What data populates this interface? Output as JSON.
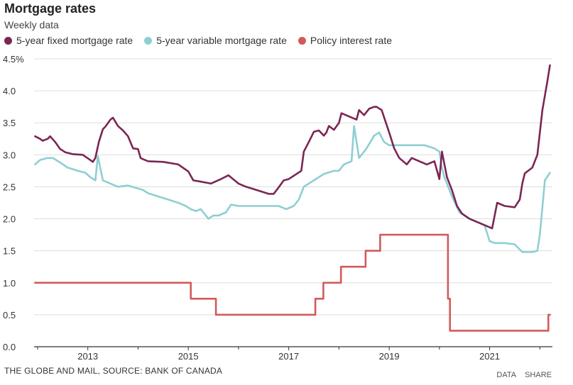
{
  "header": {
    "title": "Mortgage rates",
    "subtitle": "Weekly data"
  },
  "footer": {
    "source": "THE GLOBE AND MAIL, SOURCE: BANK OF CANADA",
    "data_link": "DATA",
    "share_link": "SHARE"
  },
  "colors": {
    "fixed": "#7b2653",
    "variable": "#8ecfd3",
    "policy": "#d35a5a",
    "grid": "#dddddd",
    "axis": "#333333"
  },
  "chart_data": {
    "type": "line",
    "title": "Mortgage rates",
    "subtitle": "Weekly data",
    "legend_position": "top-left",
    "grid": true,
    "xlim": [
      2011.93,
      2022.25
    ],
    "ylim": [
      0,
      4.5
    ],
    "yticks": [
      0.0,
      0.5,
      1.0,
      1.5,
      2.0,
      2.5,
      3.0,
      3.5,
      4.0,
      4.5
    ],
    "ytick_labels": [
      "0.0",
      "0.5",
      "1.0",
      "1.5",
      "2.0",
      "2.5",
      "3.0",
      "3.5",
      "4.0",
      "4.5%"
    ],
    "xticks": [
      2013,
      2015,
      2017,
      2019,
      2021
    ],
    "xtick_labels": [
      "2013",
      "2015",
      "2017",
      "2019",
      "2021"
    ],
    "series": [
      {
        "name": "5-year fixed mortgage rate",
        "color": "#7b2653",
        "x": [
          2011.95,
          2012.05,
          2012.1,
          2012.2,
          2012.25,
          2012.35,
          2012.45,
          2012.55,
          2012.7,
          2012.9,
          2013.1,
          2013.15,
          2013.22,
          2013.3,
          2013.35,
          2013.45,
          2013.5,
          2013.6,
          2013.7,
          2013.8,
          2013.9,
          2014.0,
          2014.05,
          2014.1,
          2014.2,
          2014.5,
          2014.8,
          2015.0,
          2015.1,
          2015.25,
          2015.45,
          2015.65,
          2015.8,
          2016.0,
          2016.15,
          2016.4,
          2016.6,
          2016.7,
          2016.8,
          2016.9,
          2017.0,
          2017.25,
          2017.3,
          2017.4,
          2017.5,
          2017.6,
          2017.7,
          2017.75,
          2017.8,
          2017.9,
          2018.0,
          2018.05,
          2018.2,
          2018.35,
          2018.4,
          2018.5,
          2018.6,
          2018.7,
          2018.75,
          2018.85,
          2019.0,
          2019.1,
          2019.2,
          2019.35,
          2019.45,
          2019.6,
          2019.75,
          2019.9,
          2020.0,
          2020.05,
          2020.15,
          2020.25,
          2020.35,
          2020.45,
          2020.6,
          2020.75,
          2020.9,
          2021.05,
          2021.15,
          2021.3,
          2021.5,
          2021.6,
          2021.65,
          2021.7,
          2021.85,
          2021.95,
          2022.05,
          2022.15,
          2022.2
        ],
        "values": [
          3.29,
          3.25,
          3.22,
          3.25,
          3.29,
          3.2,
          3.09,
          3.04,
          3.01,
          3.0,
          2.89,
          2.95,
          3.2,
          3.4,
          3.44,
          3.55,
          3.58,
          3.45,
          3.38,
          3.29,
          3.1,
          3.09,
          2.95,
          2.93,
          2.9,
          2.89,
          2.85,
          2.74,
          2.6,
          2.58,
          2.55,
          2.62,
          2.68,
          2.55,
          2.5,
          2.44,
          2.39,
          2.39,
          2.49,
          2.6,
          2.62,
          2.75,
          3.05,
          3.2,
          3.36,
          3.38,
          3.3,
          3.35,
          3.45,
          3.39,
          3.5,
          3.65,
          3.6,
          3.55,
          3.7,
          3.62,
          3.72,
          3.75,
          3.75,
          3.7,
          3.35,
          3.1,
          2.95,
          2.85,
          2.95,
          2.9,
          2.85,
          2.9,
          2.62,
          3.05,
          2.65,
          2.45,
          2.2,
          2.08,
          2.0,
          1.95,
          1.9,
          1.85,
          2.25,
          2.2,
          2.18,
          2.3,
          2.55,
          2.71,
          2.8,
          3.0,
          3.7,
          4.15,
          4.4
        ]
      },
      {
        "name": "5-year variable mortgage rate",
        "color": "#8ecfd3",
        "x": [
          2011.95,
          2012.05,
          2012.2,
          2012.3,
          2012.45,
          2012.6,
          2012.8,
          2012.95,
          2013.05,
          2013.15,
          2013.2,
          2013.3,
          2013.6,
          2013.8,
          2014.1,
          2014.2,
          2014.4,
          2014.6,
          2014.8,
          2014.95,
          2015.05,
          2015.15,
          2015.25,
          2015.4,
          2015.5,
          2015.6,
          2015.75,
          2015.85,
          2016.0,
          2016.2,
          2016.4,
          2016.6,
          2016.8,
          2016.95,
          2017.1,
          2017.2,
          2017.3,
          2017.5,
          2017.6,
          2017.7,
          2017.9,
          2018.0,
          2018.1,
          2018.25,
          2018.3,
          2018.4,
          2018.45,
          2018.55,
          2018.7,
          2018.8,
          2018.9,
          2019.0,
          2019.25,
          2019.5,
          2019.7,
          2019.9,
          2020.0,
          2020.05,
          2020.1,
          2020.25,
          2020.4,
          2020.6,
          2020.75,
          2020.9,
          2021.0,
          2021.1,
          2021.3,
          2021.5,
          2021.65,
          2021.75,
          2021.85,
          2021.95,
          2022.0,
          2022.1,
          2022.2
        ],
        "values": [
          2.85,
          2.92,
          2.95,
          2.95,
          2.88,
          2.8,
          2.75,
          2.72,
          2.65,
          2.6,
          2.98,
          2.6,
          2.5,
          2.52,
          2.45,
          2.4,
          2.35,
          2.3,
          2.25,
          2.2,
          2.15,
          2.12,
          2.15,
          2.0,
          2.05,
          2.05,
          2.1,
          2.22,
          2.2,
          2.2,
          2.2,
          2.2,
          2.2,
          2.15,
          2.2,
          2.3,
          2.5,
          2.6,
          2.65,
          2.7,
          2.75,
          2.75,
          2.85,
          2.9,
          3.45,
          2.95,
          3.0,
          3.1,
          3.3,
          3.35,
          3.2,
          3.15,
          3.15,
          3.15,
          3.15,
          3.1,
          3.05,
          2.8,
          2.65,
          2.35,
          2.1,
          2.0,
          1.95,
          1.9,
          1.65,
          1.62,
          1.62,
          1.6,
          1.48,
          1.48,
          1.48,
          1.5,
          1.75,
          2.6,
          2.72
        ]
      },
      {
        "name": "Policy interest rate",
        "color": "#d35a5a",
        "x": [
          2011.95,
          2015.05,
          2015.05,
          2015.55,
          2015.55,
          2017.53,
          2017.53,
          2017.69,
          2017.69,
          2018.04,
          2018.04,
          2018.53,
          2018.53,
          2018.82,
          2018.82,
          2020.17,
          2020.17,
          2020.21,
          2020.21,
          2022.17,
          2022.17,
          2022.2
        ],
        "values": [
          1.0,
          1.0,
          0.75,
          0.75,
          0.5,
          0.5,
          0.75,
          0.75,
          1.0,
          1.0,
          1.25,
          1.25,
          1.5,
          1.5,
          1.75,
          1.75,
          0.75,
          0.75,
          0.25,
          0.25,
          0.5,
          0.5
        ]
      }
    ]
  }
}
